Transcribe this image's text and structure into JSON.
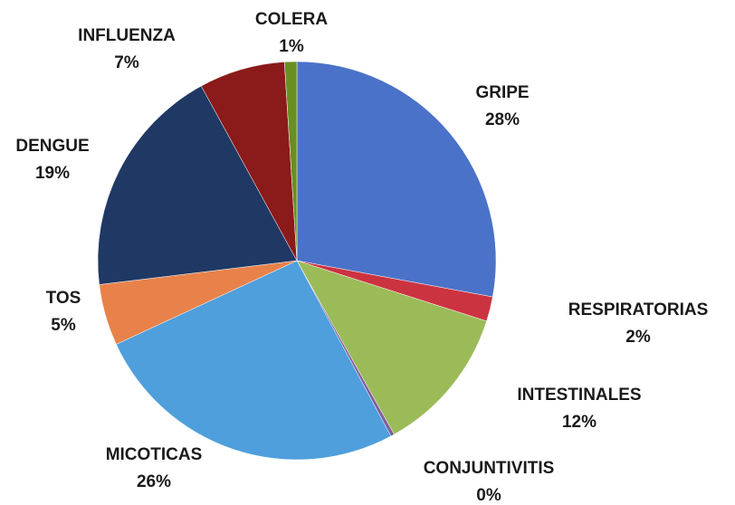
{
  "chart_data": {
    "type": "pie",
    "categories": [
      "GRIPE",
      "RESPIRATORIAS",
      "INTESTINALES",
      "CONJUNTIVITIS",
      "MICOTICAS",
      "TOS",
      "DENGUE",
      "INFLUENZA",
      "COLERA"
    ],
    "values": [
      28,
      2,
      12,
      0.3,
      26,
      5,
      19,
      7,
      1
    ],
    "value_labels": [
      "28%",
      "2%",
      "12%",
      "0%",
      "26%",
      "5%",
      "19%",
      "7%",
      "1%"
    ],
    "colors": [
      "#4a72c8",
      "#cc3340",
      "#9bbb59",
      "#7f5fa0",
      "#4f9fdc",
      "#e8824a",
      "#1f3864",
      "#8b1a1a",
      "#6b8e23"
    ]
  }
}
